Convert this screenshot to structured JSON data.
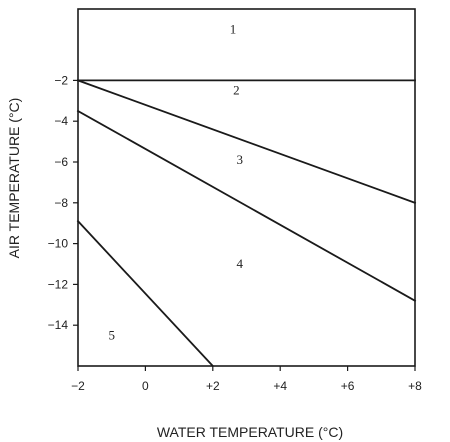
{
  "chart_data": {
    "type": "line",
    "xlabel": "WATER TEMPERATURE (°C)",
    "ylabel": "AIR TEMPERATURE (°C)",
    "xlim": [
      -2,
      8
    ],
    "ylim": [
      -16,
      1.5
    ],
    "x_ticks": [
      {
        "value": -2,
        "label": "−2"
      },
      {
        "value": 0,
        "label": "0"
      },
      {
        "value": 2,
        "label": "+2"
      },
      {
        "value": 4,
        "label": "+4"
      },
      {
        "value": 6,
        "label": "+6"
      },
      {
        "value": 8,
        "label": "+8"
      }
    ],
    "y_ticks": [
      {
        "value": -2,
        "label": "−2"
      },
      {
        "value": -4,
        "label": "−4"
      },
      {
        "value": -6,
        "label": "−6"
      },
      {
        "value": -8,
        "label": "−8"
      },
      {
        "value": -10,
        "label": "−10"
      },
      {
        "value": -12,
        "label": "−12"
      },
      {
        "value": -14,
        "label": "−14"
      }
    ],
    "series": [
      {
        "x": [
          -2,
          8
        ],
        "y": [
          -2,
          -2
        ]
      },
      {
        "x": [
          -2,
          8
        ],
        "y": [
          -2,
          -8
        ]
      },
      {
        "x": [
          -2,
          8
        ],
        "y": [
          -3.5,
          -12.8
        ]
      },
      {
        "x": [
          -2,
          2
        ],
        "y": [
          -8.9,
          -16
        ]
      }
    ],
    "annotations": [
      {
        "text": "1",
        "x": 2.6,
        "y": 0.3
      },
      {
        "text": "2",
        "x": 2.7,
        "y": -2.7
      },
      {
        "text": "3",
        "x": 2.8,
        "y": -6.1
      },
      {
        "text": "4",
        "x": 2.8,
        "y": -11.2
      },
      {
        "text": "5",
        "x": -1.0,
        "y": -14.7
      }
    ],
    "grid": false,
    "colors": {
      "line": "#1a1a1a",
      "axis": "#1a1a1a",
      "text": "#222222"
    }
  }
}
